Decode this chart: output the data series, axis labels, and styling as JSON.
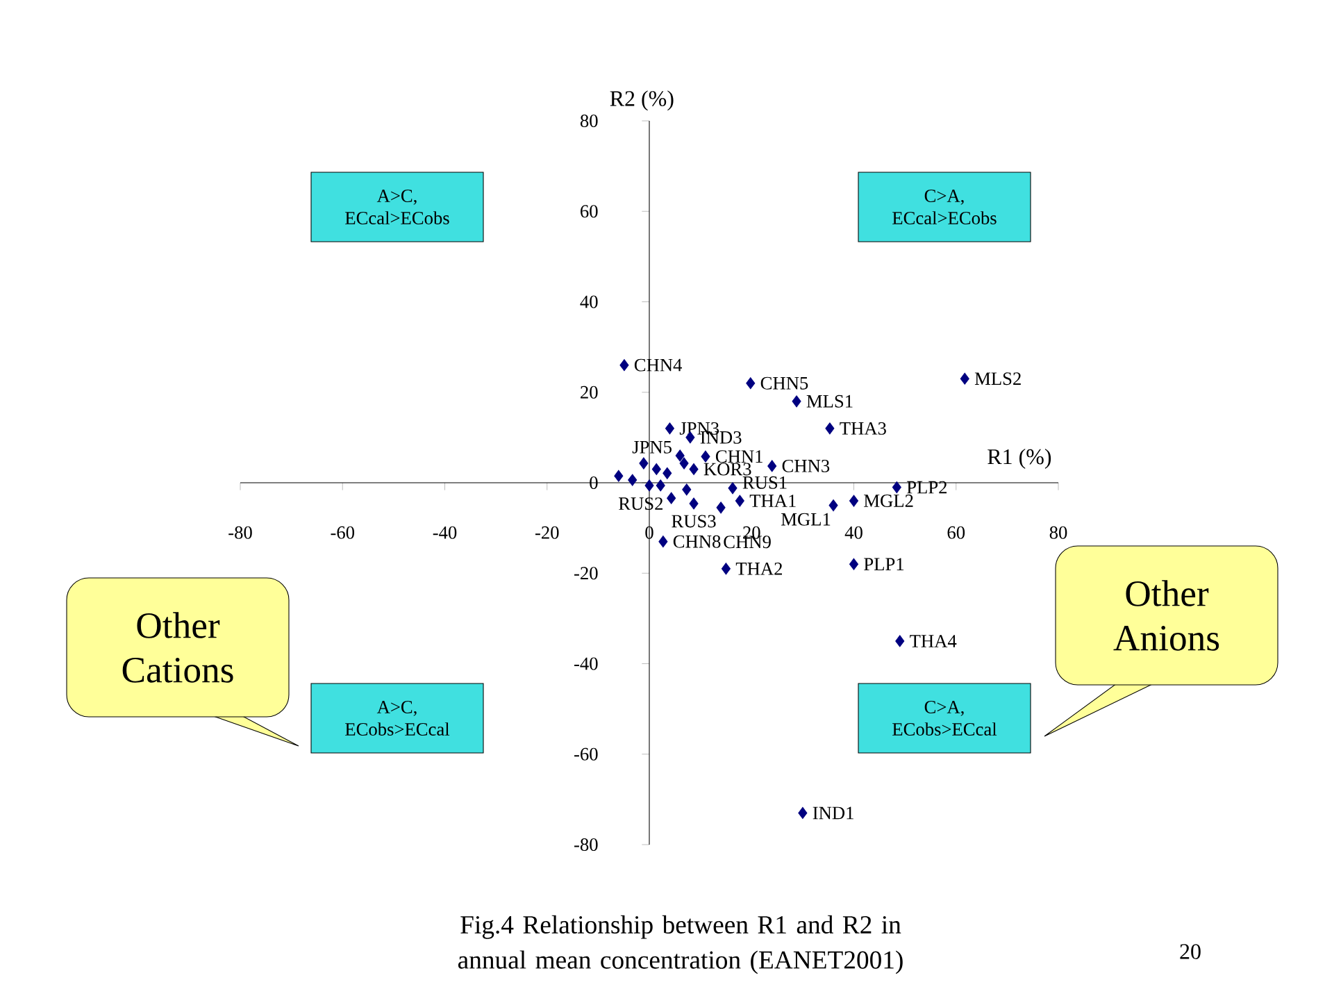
{
  "chart_data": {
    "type": "scatter",
    "title": "Fig.4 Relationship between R1 and R2 in annual mean concentration (EANET2001)",
    "xlabel": "R1 (%)",
    "ylabel": "R2 (%)",
    "x": [
      -4.9,
      19.8,
      61.7,
      28.8,
      35.3,
      4,
      8,
      6,
      11,
      24,
      48.4,
      16.3,
      17.7,
      14,
      40,
      36,
      2.7,
      15,
      40,
      49,
      30,
      4.3,
      8.7,
      -6,
      -3.3,
      -1.1,
      0,
      2.2,
      1.4,
      3.5,
      7.3,
      6.8,
      8.7
    ],
    "values": [
      26,
      22,
      23,
      18,
      12,
      12,
      10,
      6,
      5.8,
      3.7,
      -1,
      -1.2,
      -4,
      -5.5,
      -4,
      -5,
      -13,
      -19,
      -18,
      -35,
      -73,
      -3.4,
      -4.6,
      1.5,
      0.6,
      4.3,
      -0.6,
      -0.6,
      3,
      2.1,
      -1.5,
      4.3,
      3
    ],
    "color": "#000080",
    "marker": "diamond",
    "xlim": [
      -80,
      80
    ],
    "ylim": [
      -80,
      80
    ],
    "xticks": [
      -80,
      -60,
      -40,
      -20,
      0,
      20,
      40,
      60,
      80
    ],
    "yticks": [
      -80,
      -60,
      -40,
      -20,
      0,
      20,
      40,
      60,
      80
    ],
    "annotations": [
      {
        "text": "CHN4",
        "x": -4.9,
        "y": 26
      },
      {
        "text": "CHN5",
        "x": 19.8,
        "y": 22
      },
      {
        "text": "MLS2",
        "x": 61.7,
        "y": 23
      },
      {
        "text": "MLS1",
        "x": 28.8,
        "y": 18
      },
      {
        "text": "THA3",
        "x": 35.3,
        "y": 12
      },
      {
        "text": "JPN3",
        "x": 4,
        "y": 12
      },
      {
        "text": "IND3",
        "x": 8,
        "y": 10
      },
      {
        "text": "JPN5",
        "x": 6,
        "y": 6
      },
      {
        "text": "CHN1",
        "x": 11,
        "y": 5.8
      },
      {
        "text": "KOR3",
        "x": 8.7,
        "y": 3
      },
      {
        "text": "CHN3",
        "x": 24,
        "y": 3.7
      },
      {
        "text": "PLP2",
        "x": 48.4,
        "y": -1
      },
      {
        "text": "RUS1",
        "x": 16.3,
        "y": -1.2
      },
      {
        "text": "THA1",
        "x": 17.7,
        "y": -4
      },
      {
        "text": "CHN9",
        "x": 14,
        "y": -5.5
      },
      {
        "text": "MGL2",
        "x": 40,
        "y": -4
      },
      {
        "text": "MGL1",
        "x": 36,
        "y": -5
      },
      {
        "text": "CHN8",
        "x": 2.7,
        "y": -13
      },
      {
        "text": "THA2",
        "x": 15,
        "y": -19
      },
      {
        "text": "PLP1",
        "x": 40,
        "y": -18
      },
      {
        "text": "THA4",
        "x": 49,
        "y": -35
      },
      {
        "text": "IND1",
        "x": 30,
        "y": -73
      },
      {
        "text": "RUS2",
        "x": 4.3,
        "y": -3.4
      },
      {
        "text": "RUS3",
        "x": 8.7,
        "y": -4.6
      },
      "A>C, ECcal>ECobs",
      "C>A, ECcal>ECobs",
      "A>C, ECobs>ECcal",
      "C>A, ECobs>ECcal",
      "Other Cations",
      "Other Anions",
      "20"
    ]
  }
}
